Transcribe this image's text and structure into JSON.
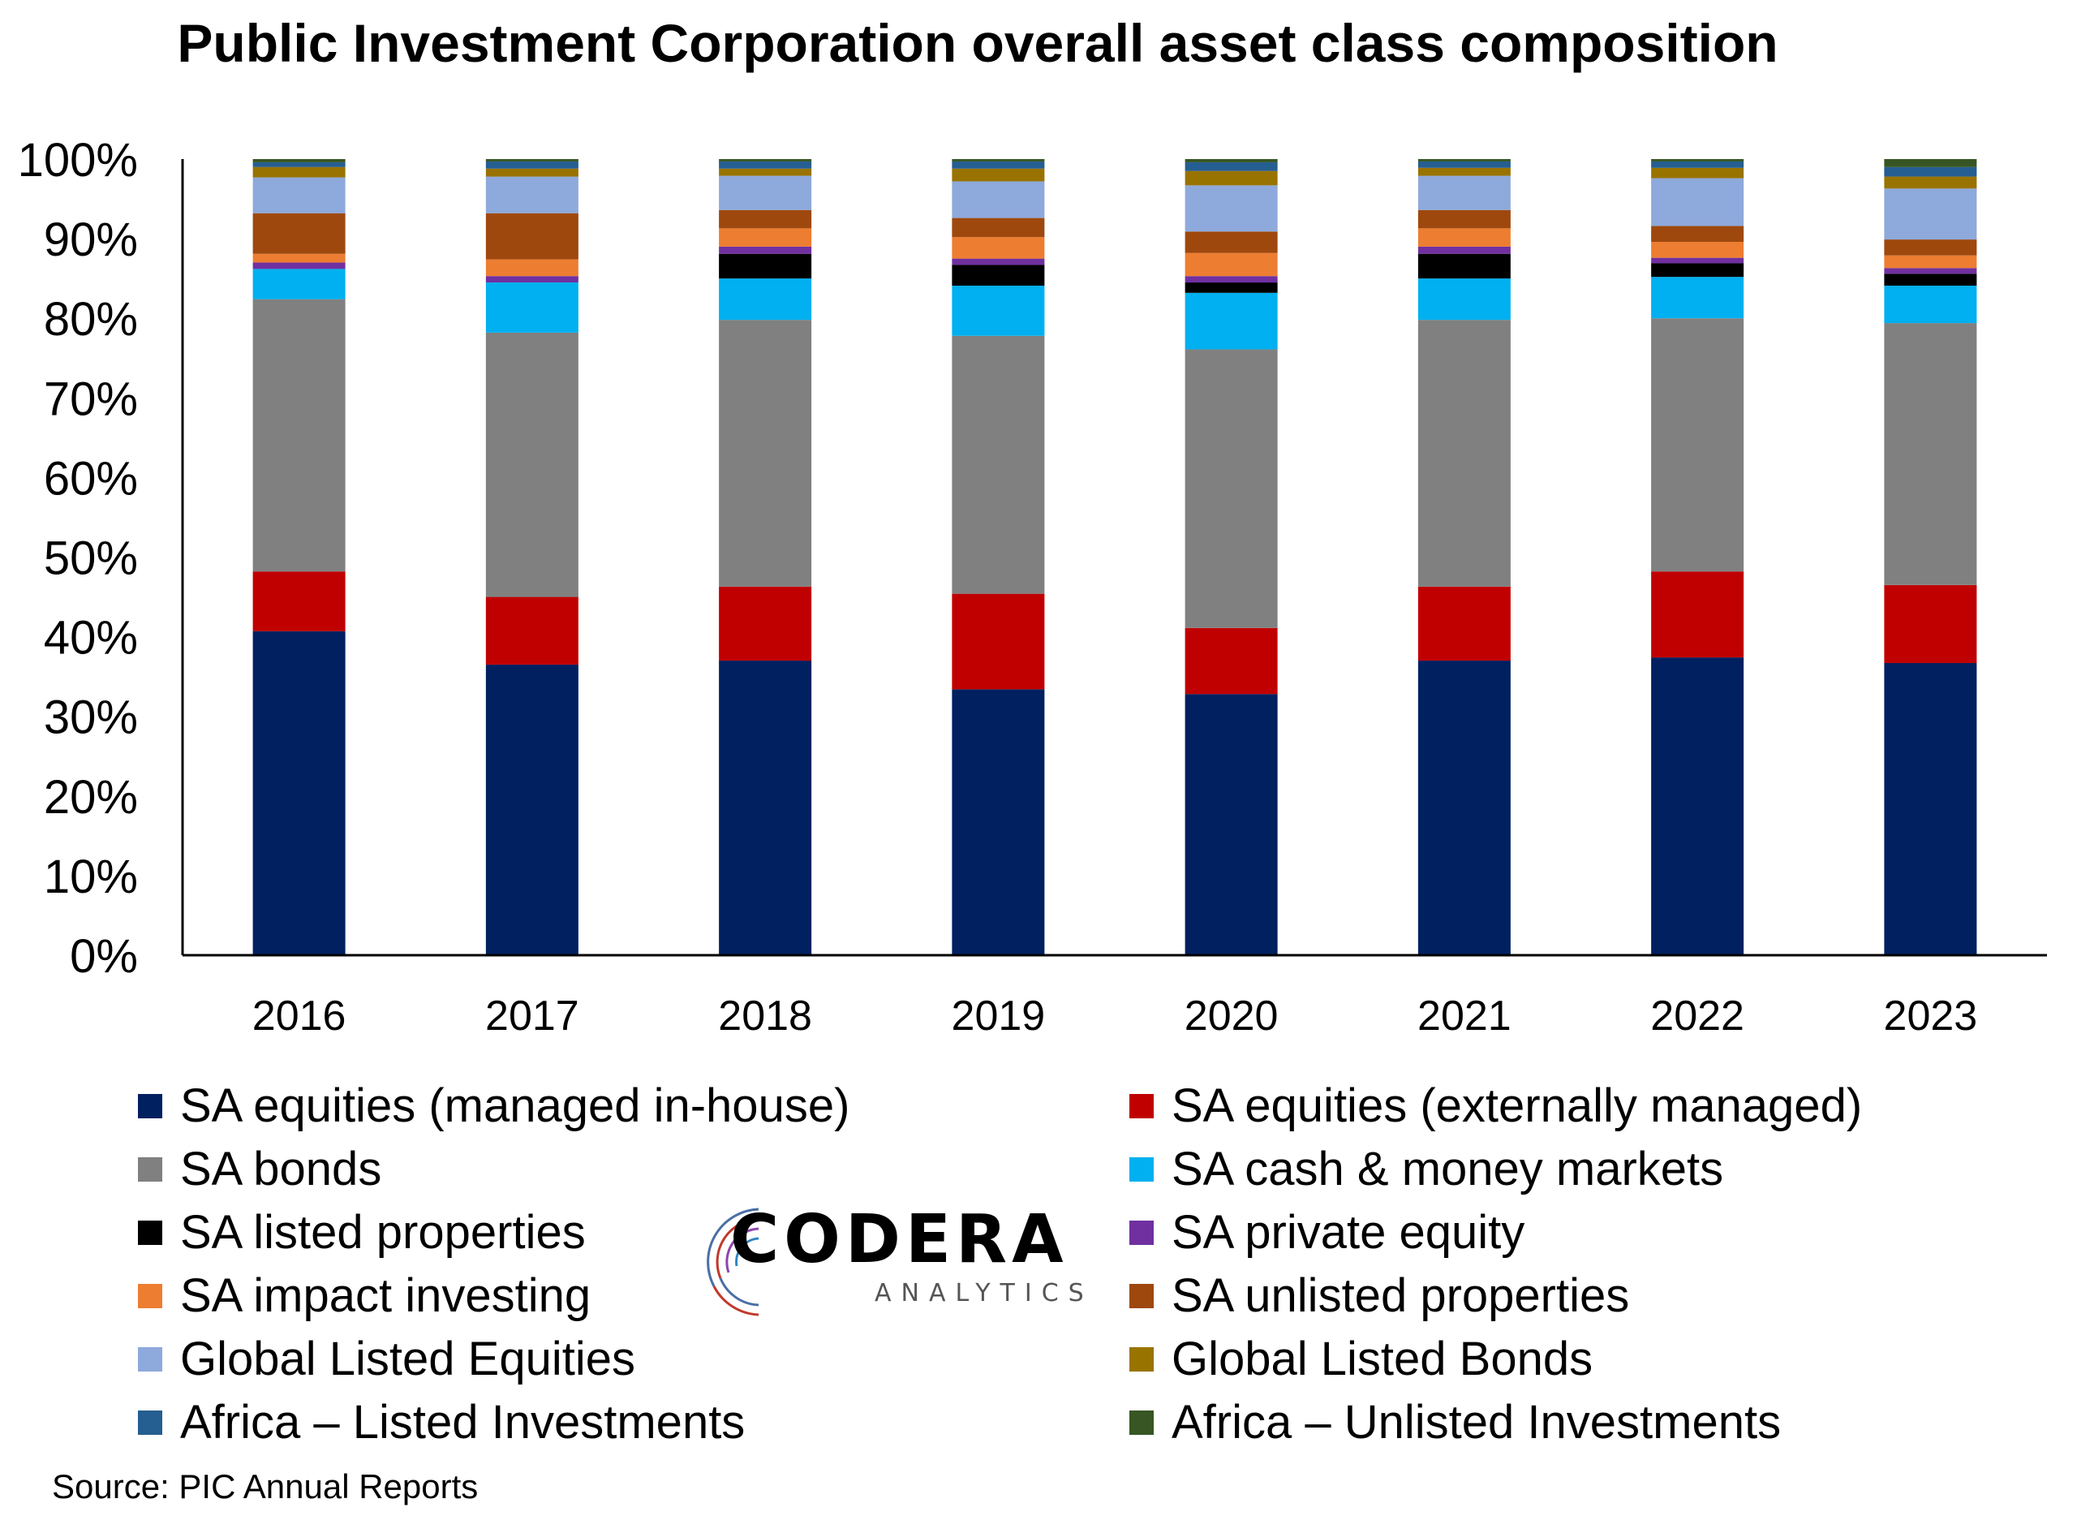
{
  "chart_data": {
    "type": "bar",
    "stacked": true,
    "title": "Public Investment Corporation overall asset class composition",
    "categories": [
      "2016",
      "2017",
      "2018",
      "2019",
      "2020",
      "2021",
      "2022",
      "2023"
    ],
    "ylim": [
      0,
      100
    ],
    "yticks": [
      "0%",
      "10%",
      "20%",
      "30%",
      "40%",
      "50%",
      "60%",
      "70%",
      "80%",
      "90%",
      "100%"
    ],
    "ytick_values": [
      0,
      10,
      20,
      30,
      40,
      50,
      60,
      70,
      80,
      90,
      100
    ],
    "grid": false,
    "legend_position": "bottom",
    "series": [
      {
        "name": "SA equities (managed in-house)",
        "color": "#002060",
        "values": [
          40.7,
          36.5,
          37.0,
          33.4,
          32.8,
          37.0,
          37.4,
          36.7
        ]
      },
      {
        "name": "SA equities (externally managed)",
        "color": "#C00000",
        "values": [
          7.5,
          8.5,
          9.3,
          12.0,
          8.3,
          9.3,
          10.8,
          9.8
        ]
      },
      {
        "name": "SA bonds",
        "color": "#808080",
        "values": [
          34.2,
          33.2,
          33.5,
          32.4,
          35.0,
          33.5,
          31.8,
          32.9
        ]
      },
      {
        "name": "SA cash & money markets",
        "color": "#00B0F0",
        "values": [
          3.8,
          6.3,
          5.2,
          6.3,
          7.1,
          5.2,
          5.2,
          4.7
        ]
      },
      {
        "name": "SA listed properties",
        "color": "#000000",
        "values": [
          0.0,
          0.0,
          3.1,
          2.6,
          1.3,
          3.1,
          1.7,
          1.5
        ]
      },
      {
        "name": "SA private equity",
        "color": "#7030A0",
        "values": [
          0.8,
          0.8,
          0.9,
          0.8,
          0.8,
          0.9,
          0.7,
          0.7
        ]
      },
      {
        "name": "SA impact investing",
        "color": "#ED7D31",
        "values": [
          1.1,
          2.1,
          2.3,
          2.7,
          2.9,
          2.3,
          2.0,
          1.6
        ]
      },
      {
        "name": "SA unlisted properties",
        "color": "#9E480E",
        "values": [
          5.1,
          5.8,
          2.3,
          2.4,
          2.7,
          2.3,
          2.0,
          2.0
        ]
      },
      {
        "name": "Global Listed Equities",
        "color": "#8EA9DB",
        "values": [
          4.5,
          4.6,
          4.3,
          4.6,
          5.8,
          4.3,
          6.0,
          6.4
        ]
      },
      {
        "name": "Global Listed Bonds",
        "color": "#997300",
        "values": [
          1.3,
          1.0,
          0.9,
          1.6,
          1.8,
          1.0,
          1.3,
          1.5
        ]
      },
      {
        "name": "Africa – Listed Investments",
        "color": "#255E91",
        "values": [
          0.6,
          0.9,
          0.9,
          0.9,
          1.1,
          0.8,
          0.8,
          1.2
        ]
      },
      {
        "name": "Africa – Unlisted Investments",
        "color": "#375623",
        "values": [
          0.4,
          0.3,
          0.3,
          0.3,
          0.4,
          0.3,
          0.3,
          1.0
        ]
      }
    ]
  },
  "branding": {
    "logo_word": "CODERA",
    "logo_sub": "ANALYTICS"
  },
  "source": "Source: PIC Annual Reports"
}
